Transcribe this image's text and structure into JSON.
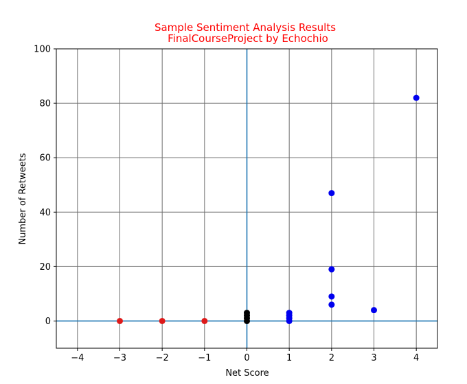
{
  "chart_data": {
    "type": "scatter",
    "title_lines": [
      "Sample Sentiment Analysis Results",
      "FinalCourseProject by Echochio"
    ],
    "xlabel": "Net Score",
    "ylabel": "Number of Retweets",
    "xlim": [
      -4.5,
      4.5
    ],
    "ylim": [
      -10,
      100
    ],
    "xticks": [
      -4,
      -3,
      -2,
      -1,
      0,
      1,
      2,
      3,
      4
    ],
    "xtick_labels": [
      "−4",
      "−3",
      "−2",
      "−1",
      "0",
      "1",
      "2",
      "3",
      "4"
    ],
    "yticks": [
      0,
      20,
      40,
      60,
      80,
      100
    ],
    "ytick_labels": [
      "0",
      "20",
      "40",
      "60",
      "80",
      "100"
    ],
    "grid": true,
    "reference_lines": {
      "x": 0,
      "y": 0,
      "color": "#1f77b4"
    },
    "colors": {
      "title": "#ff0000",
      "grid": "#6e6e6e"
    },
    "series": [
      {
        "color": "#dd1a1a",
        "points": [
          {
            "x": -3,
            "y": 0
          },
          {
            "x": -2,
            "y": 0
          },
          {
            "x": -1,
            "y": 0
          }
        ]
      },
      {
        "color": "#000000",
        "points": [
          {
            "x": 0,
            "y": 0
          },
          {
            "x": 0,
            "y": 1
          },
          {
            "x": 0,
            "y": 2
          },
          {
            "x": 0,
            "y": 3
          }
        ]
      },
      {
        "color": "#0000ee",
        "points": [
          {
            "x": 1,
            "y": 0
          },
          {
            "x": 1,
            "y": 1
          },
          {
            "x": 1,
            "y": 2
          },
          {
            "x": 1,
            "y": 3
          },
          {
            "x": 2,
            "y": 6
          },
          {
            "x": 2,
            "y": 9
          },
          {
            "x": 2,
            "y": 19
          },
          {
            "x": 2,
            "y": 47
          },
          {
            "x": 3,
            "y": 4
          },
          {
            "x": 4,
            "y": 82
          }
        ]
      }
    ]
  }
}
